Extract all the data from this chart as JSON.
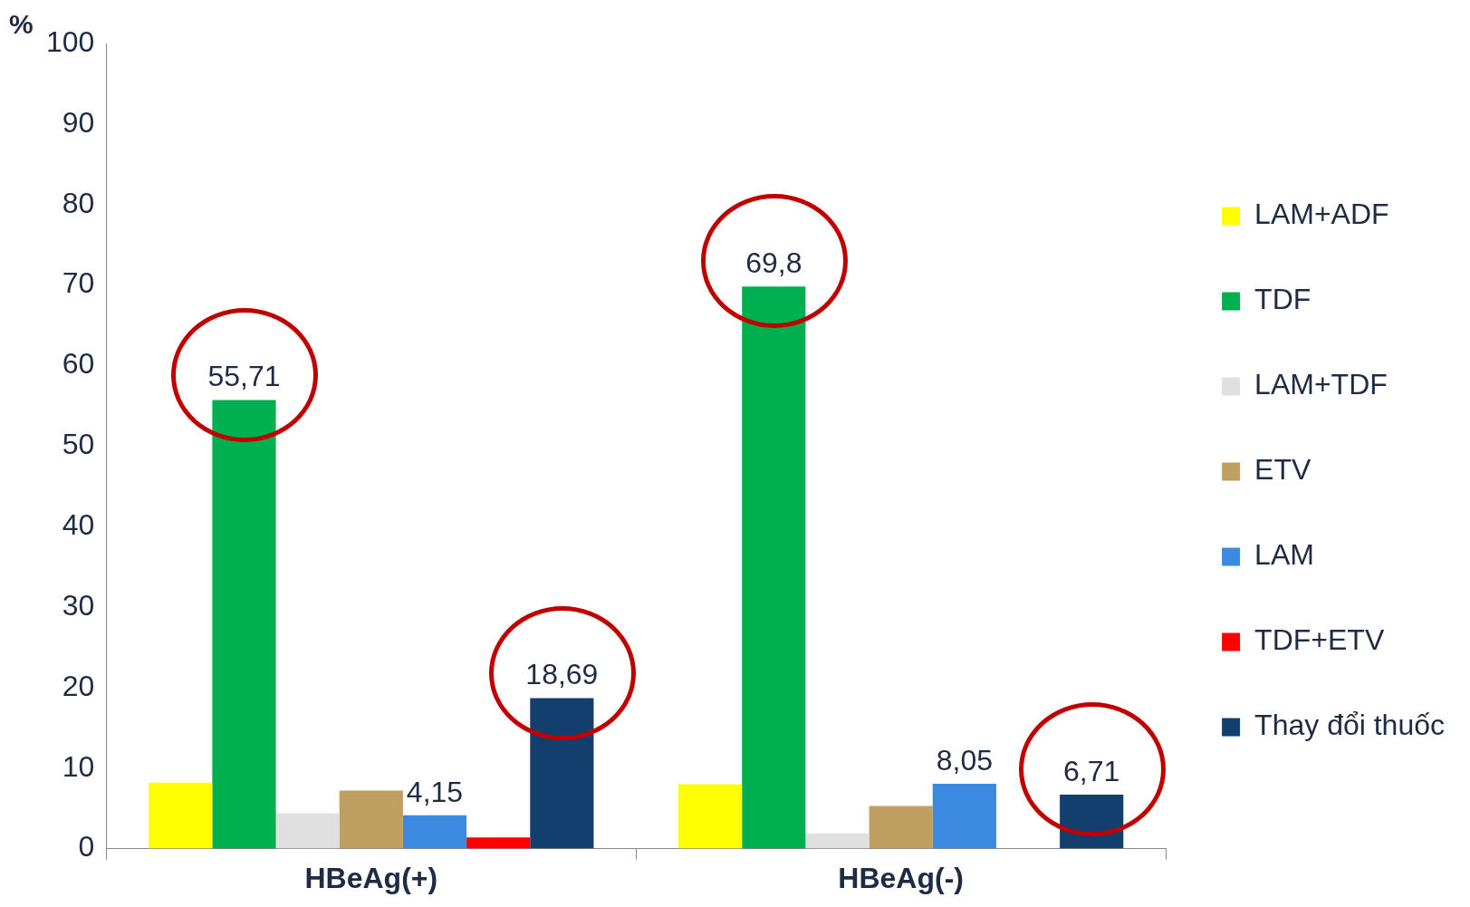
{
  "chart_data": {
    "type": "bar",
    "ylabel": "%",
    "categories": [
      "HBeAg(+)",
      "HBeAg(-)"
    ],
    "series": [
      {
        "name": "LAM+ADF",
        "color": "#ffff00",
        "values": [
          8.2,
          8.0
        ],
        "value_labels": [
          null,
          null
        ]
      },
      {
        "name": "TDF",
        "color": "#00b050",
        "values": [
          55.71,
          69.8
        ],
        "value_labels": [
          "55,71",
          "69,8"
        ]
      },
      {
        "name": "LAM+TDF",
        "color": "#e0e0e0",
        "values": [
          4.4,
          1.9
        ],
        "value_labels": [
          null,
          null
        ]
      },
      {
        "name": "ETV",
        "color": "#bfa060",
        "values": [
          7.2,
          5.3
        ],
        "value_labels": [
          null,
          null
        ]
      },
      {
        "name": "LAM",
        "color": "#3b8ae0",
        "values": [
          4.15,
          8.05
        ],
        "value_labels": [
          "4,15",
          "8,05"
        ]
      },
      {
        "name": "TDF+ETV",
        "color": "#ff0000",
        "values": [
          1.4,
          null
        ],
        "value_labels": [
          null,
          null
        ]
      },
      {
        "name": "Thay đổi thuốc",
        "color": "#123f6e",
        "values": [
          18.69,
          6.71
        ],
        "value_labels": [
          "18,69",
          "6,71"
        ]
      }
    ],
    "ylim": [
      0,
      100
    ],
    "yticks": [
      0,
      10,
      20,
      30,
      40,
      50,
      60,
      70,
      80,
      90,
      100
    ],
    "grid": false,
    "legend": "right"
  }
}
